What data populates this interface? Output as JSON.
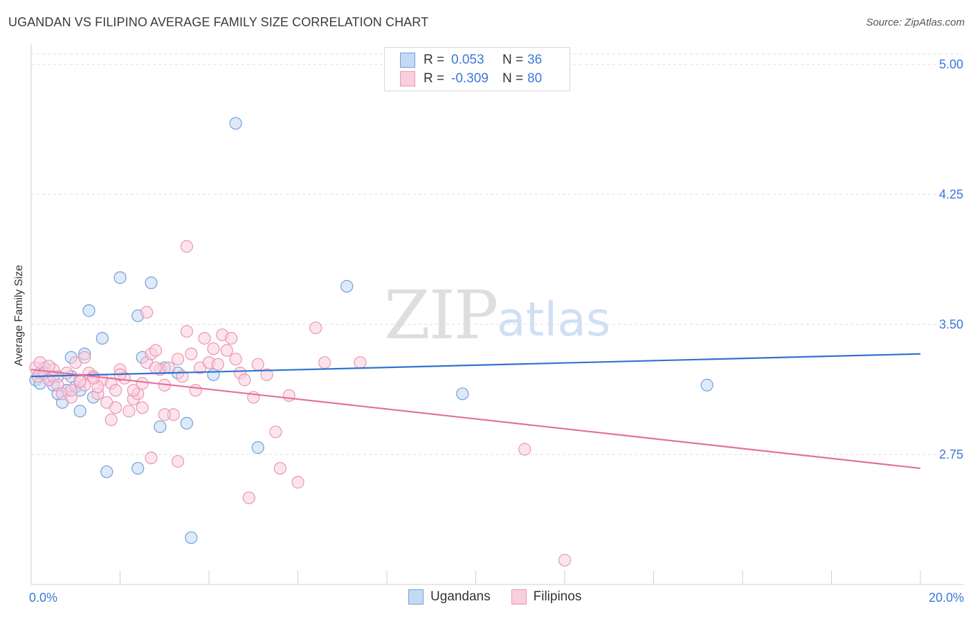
{
  "header": {
    "title": "UGANDAN VS FILIPINO AVERAGE FAMILY SIZE CORRELATION CHART",
    "source": "Source: ZipAtlas.com"
  },
  "watermark": {
    "zip": "ZIP",
    "atlas": "atlas"
  },
  "legend_top": {
    "rows": [
      {
        "r_label": "R =",
        "r_value": "0.053",
        "n_label": "N =",
        "n_value": "36"
      },
      {
        "r_label": "R =",
        "r_value": "-0.309",
        "n_label": "N =",
        "n_value": "80"
      }
    ]
  },
  "legend_bottom": {
    "items": [
      "Ugandans",
      "Filipinos"
    ]
  },
  "colors": {
    "blue_fill": "#c5d9f3",
    "blue_stroke": "#6f9fe0",
    "blue_line": "#2f72d0",
    "pink_fill": "#f9cede",
    "pink_stroke": "#eb95b2",
    "pink_line": "#e4709a",
    "grid": "#dddddd",
    "axis_text": "#3b78d8"
  },
  "chart_data": {
    "type": "scatter",
    "title": "UGANDAN VS FILIPINO AVERAGE FAMILY SIZE CORRELATION CHART",
    "xlabel": "",
    "ylabel": "Average Family Size",
    "xlim": [
      0,
      20
    ],
    "ylim": [
      2.0,
      5.12
    ],
    "x_tick_labels": [
      "0.0%",
      "20.0%"
    ],
    "y_ticks": [
      2.75,
      3.5,
      4.25,
      5.0
    ],
    "y_tick_labels": [
      "2.75",
      "3.50",
      "4.25",
      "5.00"
    ],
    "series": [
      {
        "name": "Ugandans",
        "r": 0.053,
        "n": 36,
        "trend": {
          "x": [
            0,
            20
          ],
          "y": [
            3.2,
            3.33
          ]
        },
        "points": [
          [
            0.1,
            3.18
          ],
          [
            0.2,
            3.22
          ],
          [
            0.3,
            3.25
          ],
          [
            0.4,
            3.18
          ],
          [
            0.5,
            3.15
          ],
          [
            0.6,
            3.2
          ],
          [
            0.7,
            3.05
          ],
          [
            0.8,
            3.12
          ],
          [
            0.9,
            3.31
          ],
          [
            1.0,
            3.14
          ],
          [
            1.1,
            3.12
          ],
          [
            1.1,
            3.0
          ],
          [
            1.2,
            3.33
          ],
          [
            1.3,
            3.58
          ],
          [
            1.4,
            3.08
          ],
          [
            1.6,
            3.42
          ],
          [
            1.7,
            2.65
          ],
          [
            2.0,
            3.77
          ],
          [
            2.4,
            2.67
          ],
          [
            2.4,
            3.55
          ],
          [
            2.5,
            3.31
          ],
          [
            2.7,
            3.74
          ],
          [
            2.9,
            2.91
          ],
          [
            3.0,
            3.25
          ],
          [
            3.3,
            3.22
          ],
          [
            3.5,
            2.93
          ],
          [
            3.6,
            2.27
          ],
          [
            4.1,
            3.21
          ],
          [
            4.6,
            4.66
          ],
          [
            5.1,
            2.79
          ],
          [
            7.1,
            3.72
          ],
          [
            9.7,
            3.1
          ],
          [
            15.2,
            3.15
          ],
          [
            0.2,
            3.16
          ],
          [
            0.6,
            3.1
          ],
          [
            0.9,
            3.2
          ]
        ]
      },
      {
        "name": "Filipinos",
        "r": -0.309,
        "n": 80,
        "trend": {
          "x": [
            0,
            20
          ],
          "y": [
            3.24,
            2.67
          ]
        },
        "points": [
          [
            0.1,
            3.25
          ],
          [
            0.15,
            3.2
          ],
          [
            0.2,
            3.28
          ],
          [
            0.3,
            3.22
          ],
          [
            0.4,
            3.18
          ],
          [
            0.5,
            3.2
          ],
          [
            0.6,
            3.15
          ],
          [
            0.7,
            3.1
          ],
          [
            0.8,
            3.22
          ],
          [
            0.9,
            3.08
          ],
          [
            1.0,
            3.28
          ],
          [
            1.1,
            3.18
          ],
          [
            1.2,
            3.15
          ],
          [
            1.3,
            3.22
          ],
          [
            1.4,
            3.2
          ],
          [
            1.5,
            3.1
          ],
          [
            1.6,
            3.18
          ],
          [
            1.7,
            3.05
          ],
          [
            1.8,
            3.16
          ],
          [
            1.9,
            3.12
          ],
          [
            2.0,
            3.24
          ],
          [
            2.1,
            3.19
          ],
          [
            2.2,
            3.0
          ],
          [
            2.3,
            3.07
          ],
          [
            2.4,
            3.1
          ],
          [
            2.5,
            3.02
          ],
          [
            2.6,
            3.28
          ],
          [
            2.7,
            3.33
          ],
          [
            2.8,
            3.35
          ],
          [
            2.9,
            3.24
          ],
          [
            3.0,
            3.15
          ],
          [
            3.1,
            3.25
          ],
          [
            3.2,
            2.98
          ],
          [
            3.3,
            3.3
          ],
          [
            3.4,
            3.2
          ],
          [
            3.5,
            3.46
          ],
          [
            3.6,
            3.33
          ],
          [
            3.7,
            3.12
          ],
          [
            3.8,
            3.25
          ],
          [
            3.9,
            3.42
          ],
          [
            4.0,
            3.28
          ],
          [
            4.1,
            3.36
          ],
          [
            4.2,
            3.27
          ],
          [
            4.3,
            3.44
          ],
          [
            4.4,
            3.35
          ],
          [
            4.5,
            3.42
          ],
          [
            4.6,
            3.3
          ],
          [
            4.7,
            3.22
          ],
          [
            4.8,
            3.18
          ],
          [
            5.0,
            3.08
          ],
          [
            5.1,
            3.27
          ],
          [
            5.3,
            3.21
          ],
          [
            5.5,
            2.88
          ],
          [
            5.6,
            2.67
          ],
          [
            5.8,
            3.09
          ],
          [
            6.0,
            2.59
          ],
          [
            6.4,
            3.48
          ],
          [
            6.6,
            3.28
          ],
          [
            2.6,
            3.57
          ],
          [
            3.5,
            3.95
          ],
          [
            3.3,
            2.71
          ],
          [
            2.7,
            2.73
          ],
          [
            4.9,
            2.5
          ],
          [
            7.4,
            3.28
          ],
          [
            11.1,
            2.78
          ],
          [
            12.0,
            2.14
          ],
          [
            1.2,
            3.31
          ],
          [
            1.8,
            2.95
          ],
          [
            2.3,
            3.12
          ],
          [
            3.0,
            2.98
          ],
          [
            0.9,
            3.12
          ],
          [
            1.5,
            3.14
          ],
          [
            1.9,
            3.02
          ],
          [
            2.5,
            3.16
          ],
          [
            0.5,
            3.24
          ],
          [
            2.8,
            3.25
          ],
          [
            1.1,
            3.17
          ],
          [
            0.4,
            3.26
          ],
          [
            2.0,
            3.21
          ],
          [
            1.4,
            3.19
          ]
        ]
      }
    ]
  }
}
